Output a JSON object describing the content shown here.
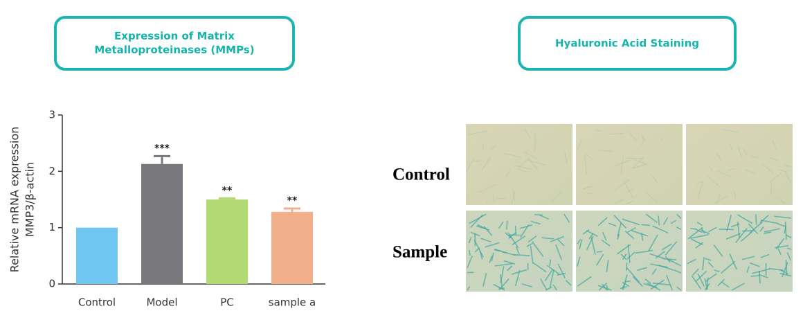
{
  "headers": [
    "Expression of Matrix Metalloproteinases (MMPs)",
    "Hyaluronic Acid Staining"
  ],
  "chart_data": {
    "type": "bar",
    "ylabel": [
      "Relative mRNA expression",
      "MMP3/β-actin"
    ],
    "categories": [
      "Control",
      "Model",
      "PC",
      "sample a"
    ],
    "values": [
      1.0,
      2.13,
      1.5,
      1.28
    ],
    "errors": [
      null,
      0.14,
      0.02,
      0.06
    ],
    "annotations": [
      null,
      "***",
      "**",
      "**"
    ],
    "colors": [
      "#6ec6f1",
      "#77777c",
      "#b3d975",
      "#f1b08b"
    ],
    "ylim": [
      0,
      3
    ],
    "yticks": [
      0,
      1,
      2,
      3
    ]
  },
  "staining": {
    "row_labels": [
      "Control",
      "Sample"
    ]
  }
}
